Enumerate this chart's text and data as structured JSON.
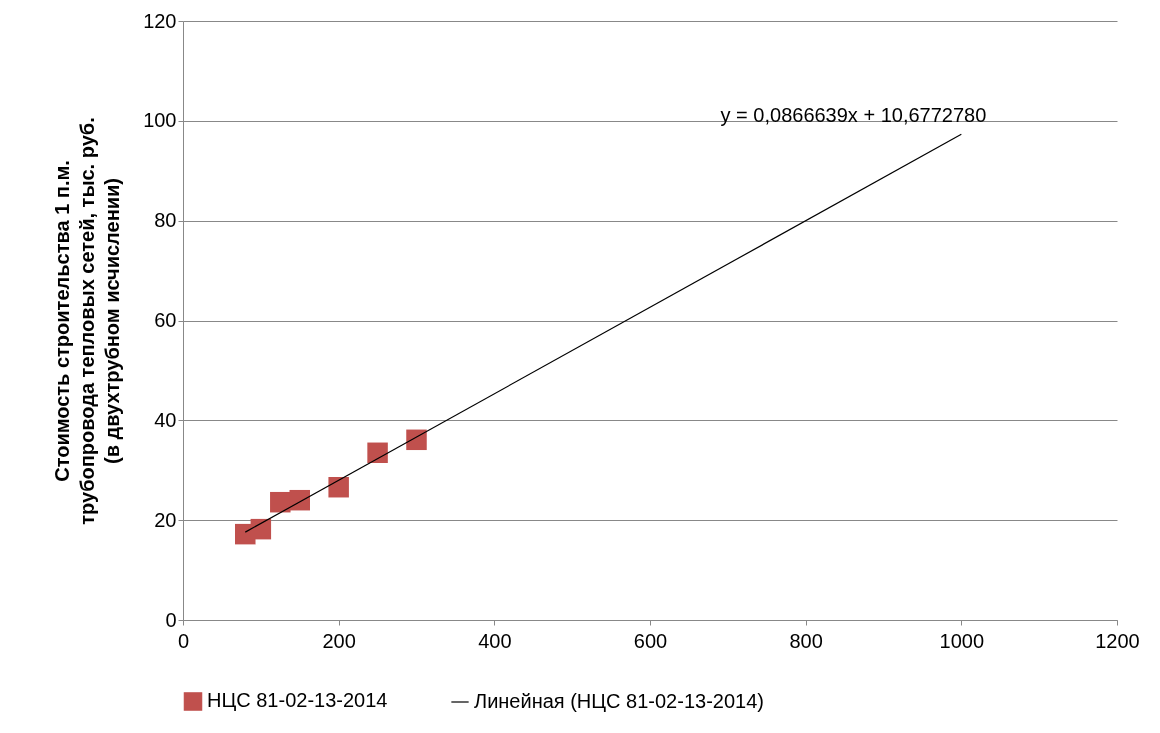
{
  "chart_data": {
    "type": "scatter",
    "ylabel": "Стоимость строительства  1 п.м.\nтрубопровода тепловых сетей, тыс. руб.\n(в двухтрубном исчислении)",
    "x": [
      80,
      100,
      125,
      150,
      200,
      250,
      300
    ],
    "series": [
      {
        "name": "НЦС 81-02-13-2014",
        "color": "#c0504d",
        "marker": "square",
        "values": [
          17.2,
          18.2,
          23.6,
          24.0,
          26.6,
          33.5,
          36.1
        ]
      },
      {
        "name": "Линейная (НЦС 81-02-13-2014)",
        "type": "line",
        "color": "#000000",
        "x": [
          80,
          1000
        ],
        "values": [
          17.6,
          97.3
        ]
      }
    ],
    "annotations": [
      "y = 0,0866639x + 10,6772780"
    ],
    "xlim": [
      0,
      1200
    ],
    "xticks": [
      0,
      200,
      400,
      600,
      800,
      1000,
      1200
    ],
    "ylim": [
      0,
      120
    ],
    "yticks": [
      0,
      20,
      40,
      60,
      80,
      100,
      120
    ],
    "grid": "y",
    "legend": "bottom"
  }
}
